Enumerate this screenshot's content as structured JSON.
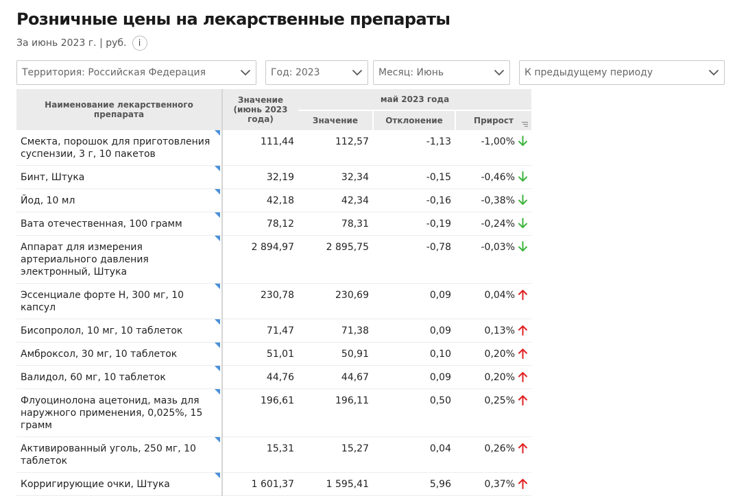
{
  "header": {
    "title": "Розничные цены на лекарственные препараты",
    "subtitle": "За июнь 2023 г. | руб.",
    "info_label": "i"
  },
  "filters": {
    "territory": "Территория: Российская  Федерация",
    "year": "Год: 2023",
    "month": "Месяц: Июнь",
    "comparison": "К предыдущему периоду"
  },
  "table": {
    "col_name": "Наименование лекарственного препарата",
    "col_value": "Значение (июнь 2023 года)",
    "group_label": "май 2023 года",
    "sub_value": "Значение",
    "sub_deviation": "Отклонение",
    "sub_growth": "Прирост",
    "colors": {
      "down": "#3cb43c",
      "up": "#e02020",
      "corner": "#4a90d9"
    },
    "rows": [
      {
        "name": "Смекта, порошок для приготовления суспензии, 3 г, 10 пакетов",
        "value": "111,44",
        "prev": "112,57",
        "deviation": "-1,13",
        "growth": "-1,00%",
        "trend": "down"
      },
      {
        "name": "Бинт, Штука",
        "value": "32,19",
        "prev": "32,34",
        "deviation": "-0,15",
        "growth": "-0,46%",
        "trend": "down"
      },
      {
        "name": "Йод, 10 мл",
        "value": "42,18",
        "prev": "42,34",
        "deviation": "-0,16",
        "growth": "-0,38%",
        "trend": "down"
      },
      {
        "name": "Вата отечественная, 100 грамм",
        "value": "78,12",
        "prev": "78,31",
        "deviation": "-0,19",
        "growth": "-0,24%",
        "trend": "down"
      },
      {
        "name": "Аппарат для измерения артериального давления электронный, Штука",
        "value": "2 894,97",
        "prev": "2 895,75",
        "deviation": "-0,78",
        "growth": "-0,03%",
        "trend": "down"
      },
      {
        "name": "Эссенциале форте Н, 300 мг, 10 капсул",
        "value": "230,78",
        "prev": "230,69",
        "deviation": "0,09",
        "growth": "0,04%",
        "trend": "up"
      },
      {
        "name": "Бисопролол, 10 мг, 10 таблеток",
        "value": "71,47",
        "prev": "71,38",
        "deviation": "0,09",
        "growth": "0,13%",
        "trend": "up"
      },
      {
        "name": "Амброксол, 30 мг, 10 таблеток",
        "value": "51,01",
        "prev": "50,91",
        "deviation": "0,10",
        "growth": "0,20%",
        "trend": "up"
      },
      {
        "name": "Валидол, 60 мг, 10 таблеток",
        "value": "44,76",
        "prev": "44,67",
        "deviation": "0,09",
        "growth": "0,20%",
        "trend": "up"
      },
      {
        "name": "Флуоцинолона ацетонид, мазь для наружного применения, 0,025%, 15 грамм",
        "value": "196,61",
        "prev": "196,11",
        "deviation": "0,50",
        "growth": "0,25%",
        "trend": "up"
      },
      {
        "name": "Активированный уголь, 250 мг, 10 таблеток",
        "value": "15,31",
        "prev": "15,27",
        "deviation": "0,04",
        "growth": "0,26%",
        "trend": "up"
      },
      {
        "name": "Корригирующие очки, Штука",
        "value": "1 601,37",
        "prev": "1 595,41",
        "deviation": "5,96",
        "growth": "0,37%",
        "trend": "up"
      }
    ]
  }
}
